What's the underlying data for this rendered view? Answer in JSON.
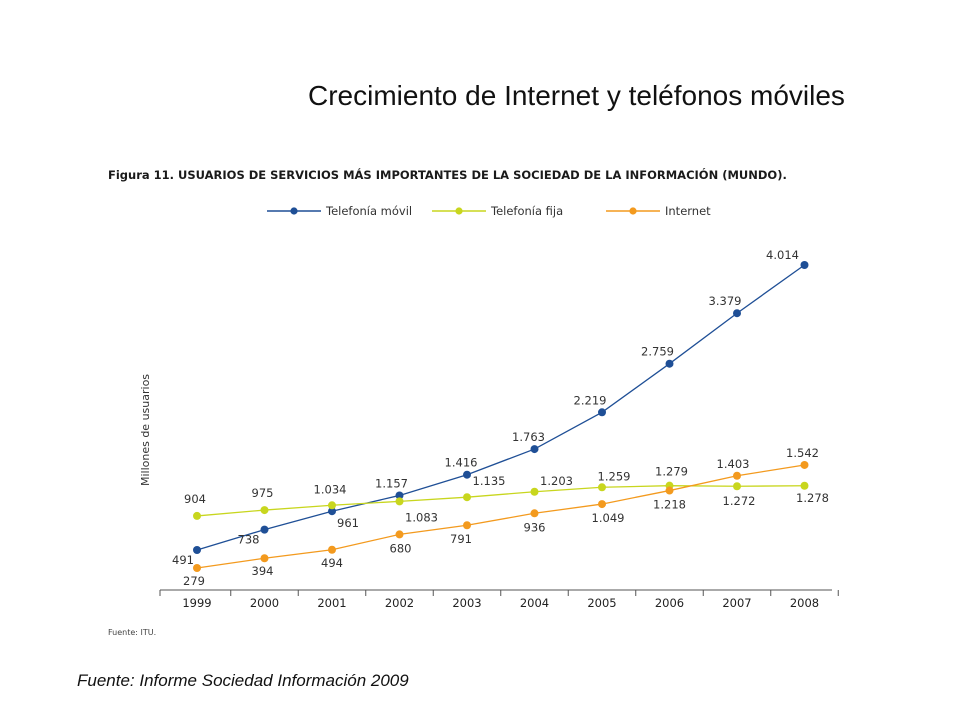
{
  "slide": {
    "title": "Crecimiento de Internet y teléfonos móviles",
    "footer": "Fuente: Informe Sociedad Información 2009"
  },
  "chart_data": {
    "type": "line",
    "title": "Figura 11. USUARIOS DE SERVICIOS MÁS IMPORTANTES DE LA SOCIEDAD DE LA INFORMACIÓN (MUNDO).",
    "ylabel": "Millones de usuarios",
    "xlabel": "",
    "source_note": "Fuente: ITU.",
    "categories": [
      "1999",
      "2000",
      "2001",
      "2002",
      "2003",
      "2004",
      "2005",
      "2006",
      "2007",
      "2008"
    ],
    "grid": false,
    "legend_position": "top",
    "series": [
      {
        "name": "Telefonía móvil",
        "color": "#1f4f96",
        "values": [
          491,
          738,
          961,
          1157,
          1416,
          1763,
          2219,
          2759,
          3379,
          4014
        ],
        "labels": [
          "491",
          "738",
          "961",
          "1.157",
          "1.416",
          "1.763",
          "2.219",
          "2.759",
          "3.379",
          "4.014"
        ]
      },
      {
        "name": "Telefonía fija",
        "color": "#c8d61e",
        "values": [
          904,
          975,
          1034,
          1083,
          1135,
          1203,
          1259,
          1279,
          1272,
          1278
        ],
        "labels": [
          "904",
          "975",
          "1.034",
          "1.083",
          "1.135",
          "1.203",
          "1.259",
          "1.279",
          "1.272",
          "1.278"
        ]
      },
      {
        "name": "Internet",
        "color": "#f39a1e",
        "values": [
          279,
          394,
          494,
          680,
          791,
          936,
          1049,
          1218,
          1403,
          1542
        ],
        "labels": [
          "279",
          "394",
          "494",
          "680",
          "791",
          "936",
          "1.049",
          "1.218",
          "1.403",
          "1.542"
        ]
      }
    ]
  }
}
